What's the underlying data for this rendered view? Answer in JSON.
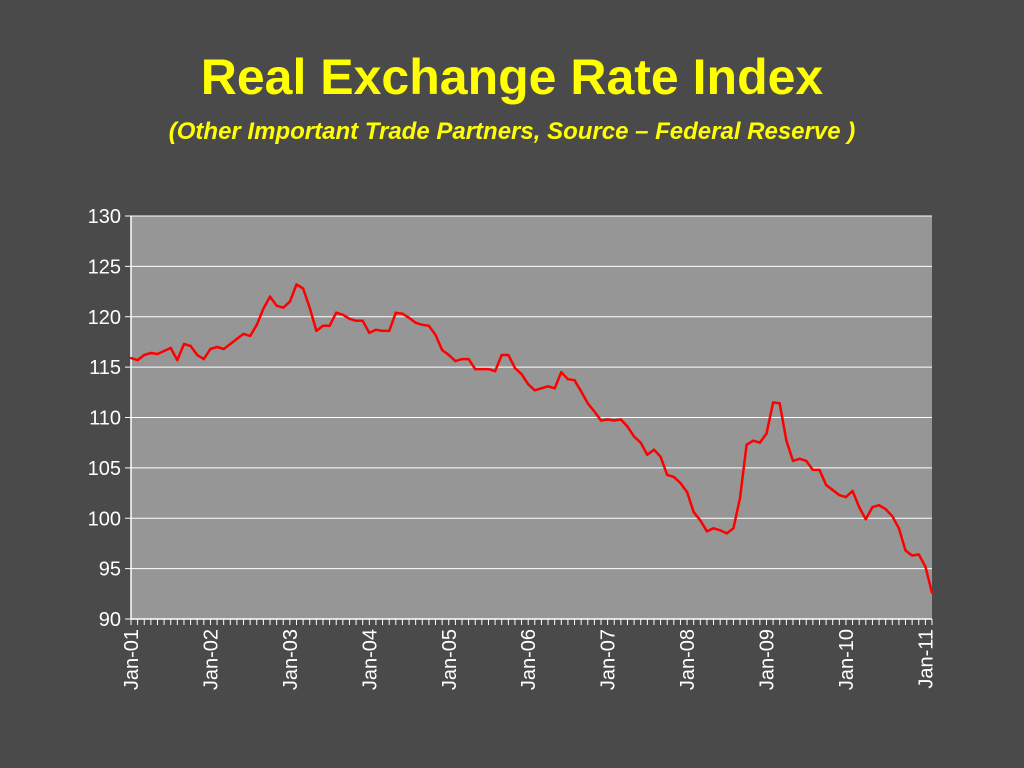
{
  "colors": {
    "background": "#4a4a4a",
    "title": "#ffff00",
    "plot_area": "#969696",
    "gridline": "#ffffff",
    "series": "#ff0000",
    "axis_text": "#ffffff"
  },
  "chart_data": {
    "type": "line",
    "title": "Real Exchange Rate Index",
    "subtitle": "(Other Important Trade Partners, Source – Federal Reserve )",
    "xlabel": "",
    "ylabel": "",
    "ylim": [
      90,
      130
    ],
    "yticks": [
      "130",
      "125",
      "120",
      "115",
      "110",
      "105",
      "100",
      "95",
      "90"
    ],
    "ytick_values": [
      130,
      125,
      120,
      115,
      110,
      105,
      100,
      95,
      90
    ],
    "xtick_labels": [
      "Jan-01",
      "Jan-02",
      "Jan-03",
      "Jan-04",
      "Jan-05",
      "Jan-06",
      "Jan-07",
      "Jan-08",
      "Jan-09",
      "Jan-10",
      "Jan-11"
    ],
    "grid": true,
    "legend": "none",
    "series": [
      {
        "values": [
          115.9,
          115.7,
          116.2,
          116.4,
          116.3,
          116.6,
          116.9,
          115.7,
          117.3,
          117.1,
          116.2,
          115.8,
          116.8,
          117.0,
          116.8,
          117.3,
          117.8,
          118.3,
          118.1,
          119.2,
          120.8,
          122.0,
          121.1,
          120.9,
          121.5,
          123.2,
          122.8,
          120.9,
          118.6,
          119.1,
          119.1,
          120.4,
          120.2,
          119.8,
          119.6,
          119.6,
          118.4,
          118.7,
          118.6,
          118.6,
          120.4,
          120.3,
          119.9,
          119.4,
          119.2,
          119.1,
          118.2,
          116.7,
          116.2,
          115.6,
          115.8,
          115.8,
          114.8,
          114.8,
          114.8,
          114.6,
          116.2,
          116.2,
          114.9,
          114.3,
          113.3,
          112.7,
          112.9,
          113.1,
          112.9,
          114.5,
          113.8,
          113.7,
          112.6,
          111.4,
          110.6,
          109.7,
          109.8,
          109.7,
          109.8,
          109.1,
          108.1,
          107.5,
          106.3,
          106.8,
          106.1,
          104.3,
          104.1,
          103.5,
          102.6,
          100.6,
          99.8,
          98.7,
          99.0,
          98.8,
          98.5,
          99.0,
          102.0,
          107.3,
          107.7,
          107.5,
          108.4,
          111.5,
          111.4,
          107.7,
          105.7,
          105.9,
          105.7,
          104.8,
          104.8,
          103.3,
          102.8,
          102.3,
          102.1,
          102.7,
          101.1,
          99.9,
          101.1,
          101.3,
          100.9,
          100.2,
          99.0,
          96.8,
          96.3,
          96.4,
          95.2,
          92.6
        ]
      }
    ]
  }
}
